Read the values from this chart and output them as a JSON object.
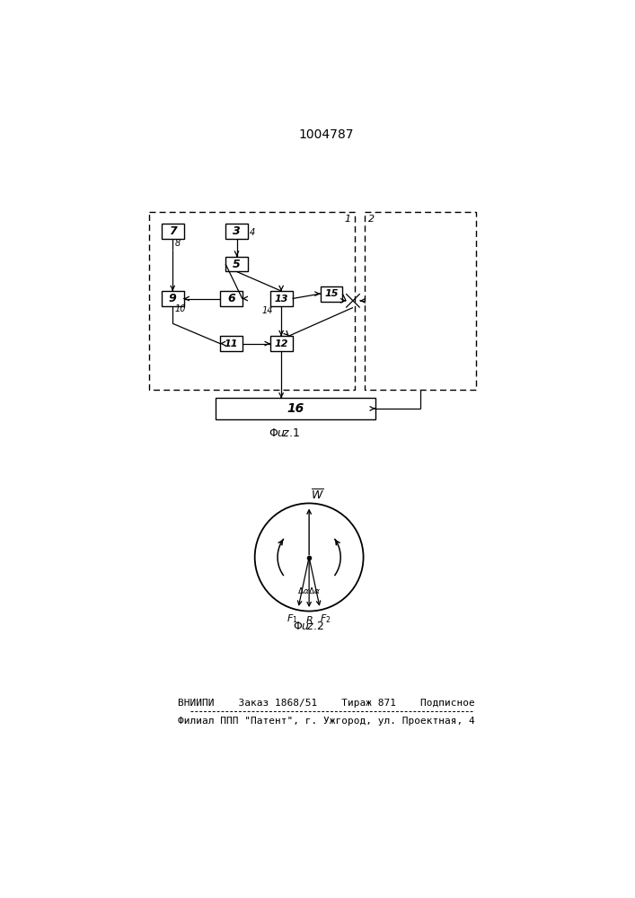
{
  "title": "1004787",
  "bg_color": "#ffffff",
  "line_color": "#000000",
  "footer_line1": "ВНИИПИ    Заказ 1868/51    Тираж 871    Подписное",
  "footer_line2": "Филиал ППП \"Патент\", г. Ужгород, ул. Проектная, 4"
}
